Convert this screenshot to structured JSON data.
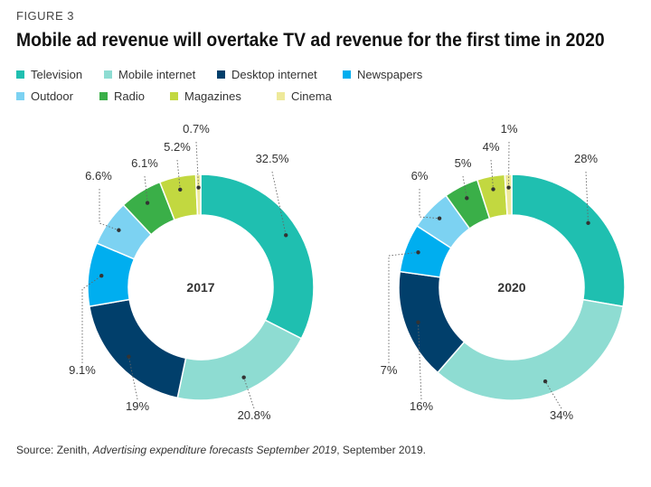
{
  "figure_label": "FIGURE 3",
  "title": "Mobile ad revenue will overtake TV ad revenue for the first time in 2020",
  "source": {
    "prefix": "Source: Zenith, ",
    "italic": "Advertising expenditure forecasts September 2019",
    "suffix": ", September 2019."
  },
  "chart_data": [
    {
      "type": "pie",
      "variant": "donut",
      "center_label": "2017",
      "categories": [
        "Television",
        "Mobile internet",
        "Desktop internet",
        "Newspapers",
        "Outdoor",
        "Radio",
        "Magazines",
        "Cinema"
      ],
      "values": [
        32.5,
        20.8,
        19,
        9.1,
        6.6,
        6.1,
        5.2,
        0.7
      ],
      "labels": [
        "32.5%",
        "20.8%",
        "19%",
        "9.1%",
        "6.6%",
        "6.1%",
        "5.2%",
        "0.7%"
      ]
    },
    {
      "type": "pie",
      "variant": "donut",
      "center_label": "2020",
      "categories": [
        "Television",
        "Mobile internet",
        "Desktop internet",
        "Newspapers",
        "Outdoor",
        "Radio",
        "Magazines",
        "Cinema"
      ],
      "values": [
        28,
        34,
        16,
        7,
        6,
        5,
        4,
        1
      ],
      "labels": [
        "28%",
        "34%",
        "16%",
        "7%",
        "6%",
        "5%",
        "4%",
        "1%"
      ]
    }
  ],
  "legend": [
    {
      "name": "Television",
      "color": "#1fbfb0"
    },
    {
      "name": "Mobile internet",
      "color": "#8edcd2"
    },
    {
      "name": "Desktop internet",
      "color": "#013f6b"
    },
    {
      "name": "Newspapers",
      "color": "#00aeef"
    },
    {
      "name": "Outdoor",
      "color": "#7cd2f2"
    },
    {
      "name": "Radio",
      "color": "#3aaf48"
    },
    {
      "name": "Magazines",
      "color": "#c2d840"
    },
    {
      "name": "Cinema",
      "color": "#eee99a"
    }
  ]
}
